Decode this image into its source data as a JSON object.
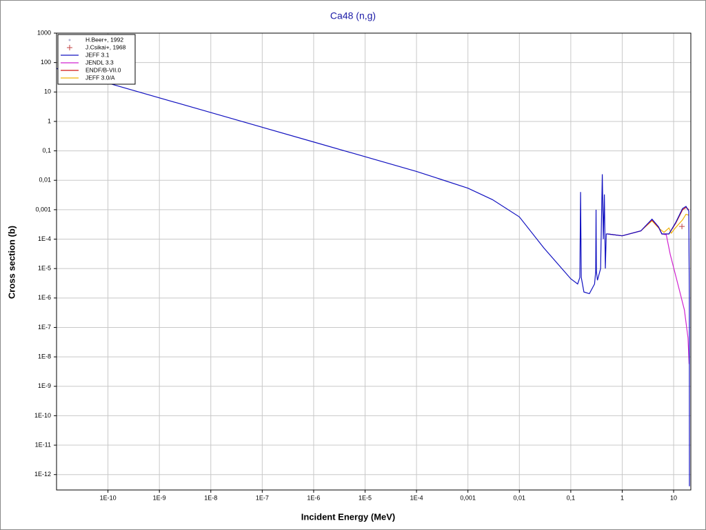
{
  "chart_data": {
    "type": "line",
    "title": "Ca48 (n,g)",
    "x_label": "Incident Energy (MeV)",
    "y_label": "Cross section (b)",
    "log_x": true,
    "log_y": true,
    "grid": true,
    "legend_position": "upper-left",
    "xlim": [
      1e-11,
      21.6
    ],
    "ylim": [
      3e-13,
      1000
    ],
    "xticks": [
      {
        "value": 1e-10,
        "label": "1E-10"
      },
      {
        "value": 1e-09,
        "label": "1E-9"
      },
      {
        "value": 1e-08,
        "label": "1E-8"
      },
      {
        "value": 1e-07,
        "label": "1E-7"
      },
      {
        "value": 1e-06,
        "label": "1E-6"
      },
      {
        "value": 1e-05,
        "label": "1E-5"
      },
      {
        "value": 0.0001,
        "label": "1E-4"
      },
      {
        "value": 0.001,
        "label": "0,001"
      },
      {
        "value": 0.01,
        "label": "0,01"
      },
      {
        "value": 0.1,
        "label": "0,1"
      },
      1,
      10
    ],
    "yticks": [
      1000,
      100,
      10,
      1,
      {
        "value": 0.1,
        "label": "0,1"
      },
      {
        "value": 0.01,
        "label": "0,01"
      },
      {
        "value": 0.001,
        "label": "0,001"
      },
      {
        "value": 0.0001,
        "label": "1E-4"
      },
      {
        "value": 1e-05,
        "label": "1E-5"
      },
      {
        "value": 1e-06,
        "label": "1E-6"
      },
      {
        "value": 1e-07,
        "label": "1E-7"
      },
      {
        "value": 1e-08,
        "label": "1E-8"
      },
      {
        "value": 1e-09,
        "label": "1E-9"
      },
      {
        "value": 1e-10,
        "label": "1E-10"
      },
      {
        "value": 1e-11,
        "label": "1E-11"
      },
      {
        "value": 1e-12,
        "label": "1E-12"
      }
    ],
    "series": [
      {
        "name": "H.Beer+, 1992",
        "kind": "points",
        "marker": "dot",
        "color": "#b0b0d0",
        "x": [],
        "values": []
      },
      {
        "name": "J.Csikai+, 1968",
        "kind": "points",
        "marker": "plus",
        "color": "#c04040",
        "x": [
          14.5
        ],
        "values": [
          0.00027
        ]
      },
      {
        "name": "JEFF 3.0/A",
        "kind": "line",
        "color": "#f0b000",
        "x": [
          0.52,
          1,
          2.3,
          3.8,
          5.1,
          6.5,
          8.1,
          9,
          11,
          14.9,
          17.4,
          19.7
        ],
        "values": [
          0.00015,
          0.00013,
          0.00019,
          0.00042,
          0.00024,
          0.00017,
          0.00024,
          0.00016,
          0.00025,
          0.00045,
          0.0007,
          0.00065
        ]
      },
      {
        "name": "ENDF/B-VII.0",
        "kind": "line",
        "color": "#d01010",
        "x": [
          0.52,
          1,
          2.3,
          3.8,
          5.1,
          5.9,
          8.1,
          11,
          14.9,
          17.4,
          19.7
        ],
        "values": [
          0.00015,
          0.00013,
          0.00019,
          0.00045,
          0.00025,
          0.00015,
          0.00015,
          0.00035,
          0.001,
          0.0012,
          0.001
        ]
      },
      {
        "name": "JENDL 3.3",
        "kind": "line",
        "color": "#d020d0",
        "x": [
          0.52,
          1,
          2.3,
          3.8,
          5.1,
          5.9,
          7.2,
          8.6,
          12.8,
          16.2,
          19,
          20
        ],
        "values": [
          0.00015,
          0.00013,
          0.00019,
          0.00047,
          0.00026,
          0.00015,
          0.00014,
          3e-05,
          2e-06,
          3.9e-07,
          4.5e-08,
          5.7e-09
        ]
      },
      {
        "name": "JEFF 3.1",
        "kind": "line",
        "color": "#1010c0",
        "x": [
          1e-11,
          1e-10,
          1e-08,
          1e-06,
          0.0001,
          0.001,
          0.003,
          0.01,
          0.03,
          0.1,
          0.136,
          0.15,
          0.155,
          0.16,
          0.18,
          0.23,
          0.29,
          0.305,
          0.31,
          0.315,
          0.33,
          0.38,
          0.41,
          0.43,
          0.45,
          0.47,
          0.49,
          0.52,
          1,
          2.3,
          3.8,
          5.1,
          5.9,
          8.1,
          11,
          14.9,
          17.4,
          19.7,
          20.2,
          20.3
        ],
        "values": [
          63,
          20,
          2,
          0.2,
          0.02,
          0.0054,
          0.0022,
          0.00057,
          5e-05,
          4.5e-06,
          3e-06,
          5e-06,
          0.004,
          5e-06,
          1.6e-06,
          1.4e-06,
          3e-06,
          8e-06,
          0.001,
          8e-06,
          4e-06,
          1e-05,
          0.016,
          0.0001,
          0.0033,
          1e-05,
          0.00015,
          0.00015,
          0.00013,
          0.00019,
          0.00048,
          0.00026,
          0.00015,
          0.00015,
          0.00037,
          0.0011,
          0.0013,
          0.0009,
          1e-06,
          4e-13
        ]
      }
    ]
  }
}
